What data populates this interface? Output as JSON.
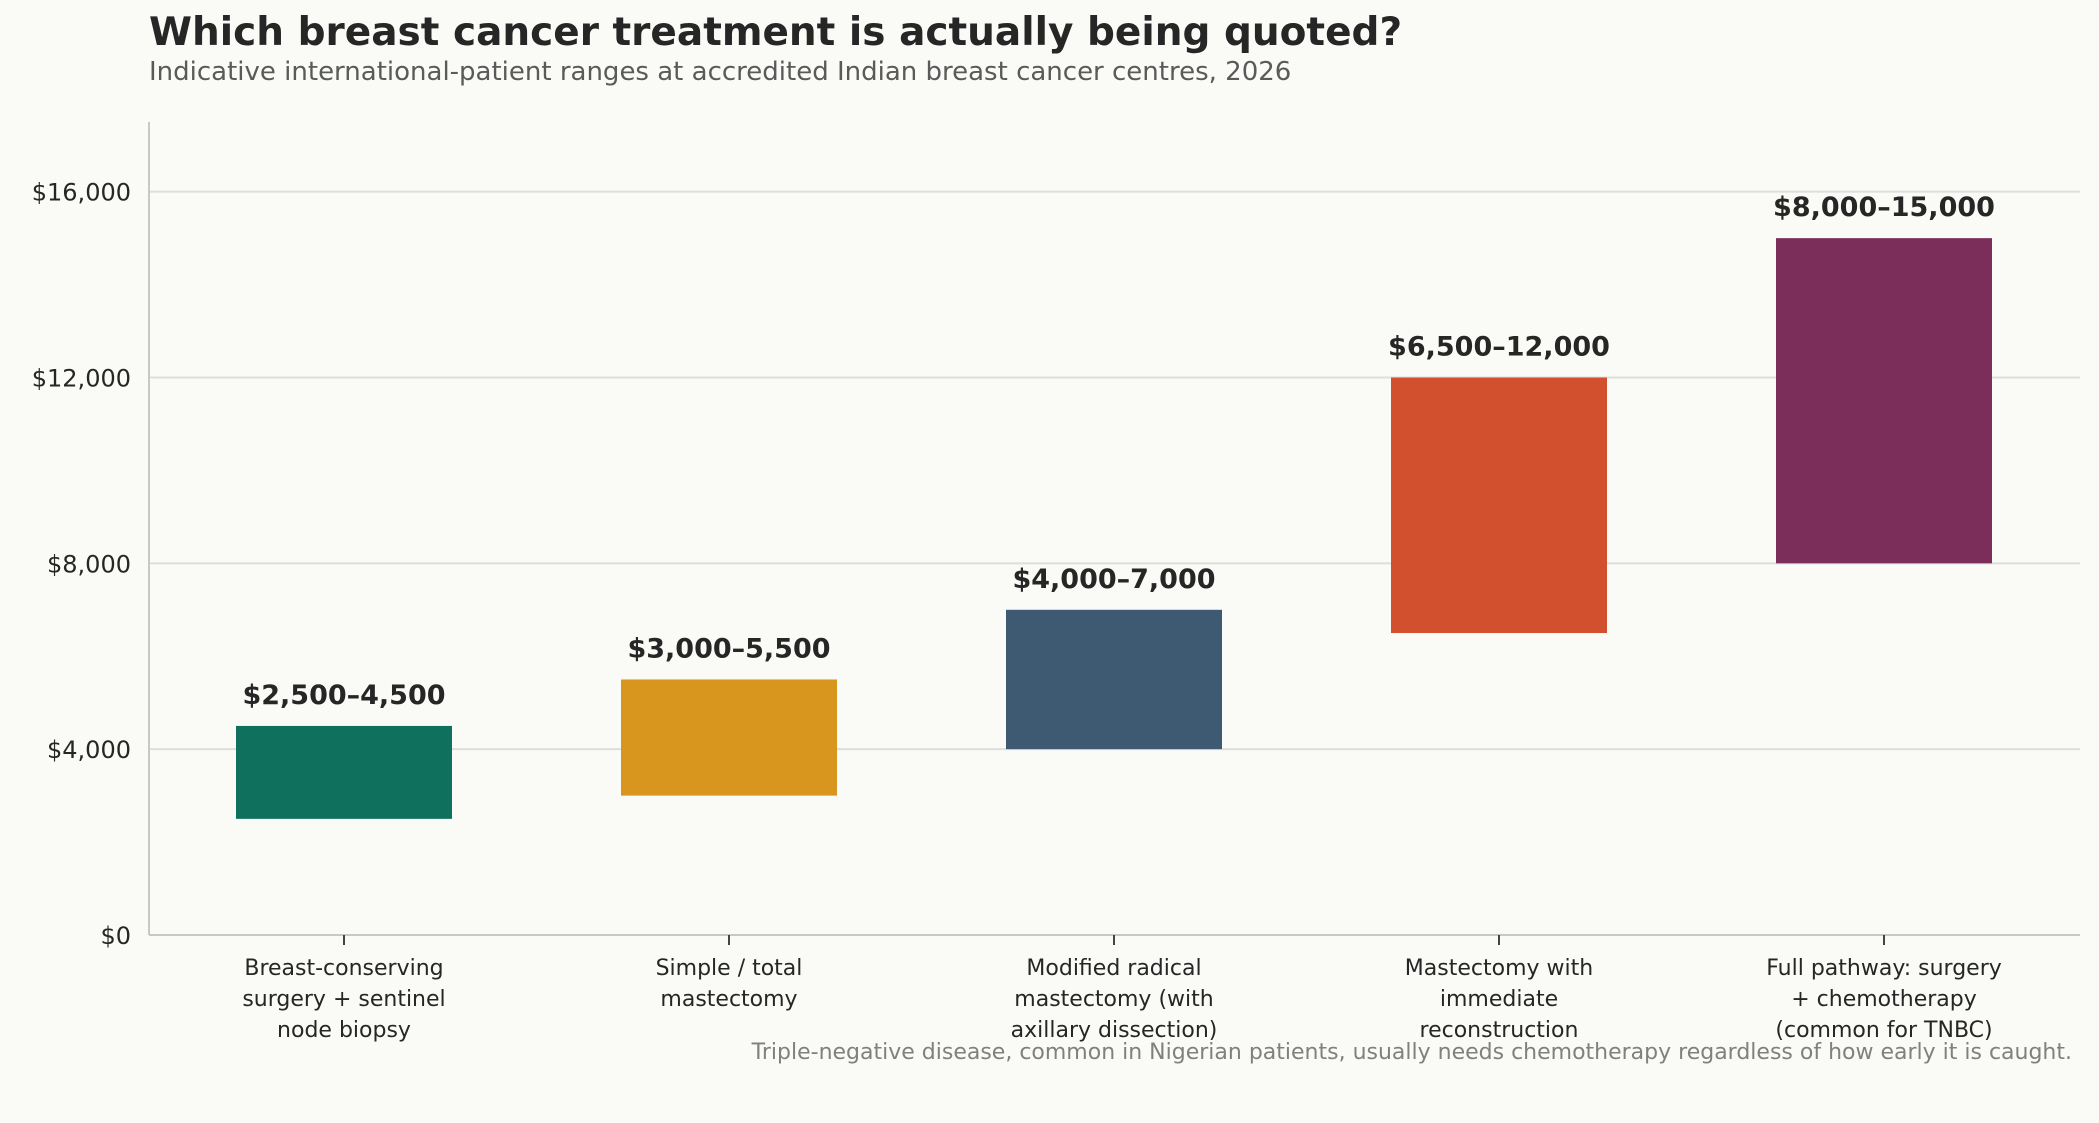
{
  "chart_data": {
    "type": "bar",
    "title": "Which breast cancer treatment is actually being quoted?",
    "subtitle": "Indicative international-patient ranges at accredited Indian breast cancer centres, 2026",
    "footnote": "Triple-negative disease, common in Nigerian patients, usually needs chemotherapy regardless of how early it is caught.",
    "xlabel": "",
    "ylabel": "",
    "ylim": [
      0,
      17500
    ],
    "yticks": [
      0,
      4000,
      8000,
      12000,
      16000
    ],
    "ytick_labels": [
      "$0",
      "$4,000",
      "$8,000",
      "$12,000",
      "$16,000"
    ],
    "grid": "horizontal",
    "bars": [
      {
        "category_lines": [
          "Breast-conserving",
          "surgery + sentinel",
          "node biopsy"
        ],
        "low": 2500,
        "high": 4500,
        "label": "$2,500–4,500",
        "color": "#0f705d"
      },
      {
        "category_lines": [
          "Simple / total",
          "mastectomy"
        ],
        "low": 3000,
        "high": 5500,
        "label": "$3,000–5,500",
        "color": "#d9961e"
      },
      {
        "category_lines": [
          "Modified radical",
          "mastectomy (with",
          "axillary dissection)"
        ],
        "low": 4000,
        "high": 7000,
        "label": "$4,000–7,000",
        "color": "#3d5a72"
      },
      {
        "category_lines": [
          "Mastectomy with",
          "immediate",
          "reconstruction"
        ],
        "low": 6500,
        "high": 12000,
        "label": "$6,500–12,000",
        "color": "#d3502f"
      },
      {
        "category_lines": [
          "Full pathway: surgery",
          "+ chemotherapy",
          "(common for TNBC)"
        ],
        "low": 8000,
        "high": 15000,
        "label": "$8,000–15,000",
        "color": "#7a2e59"
      }
    ]
  }
}
